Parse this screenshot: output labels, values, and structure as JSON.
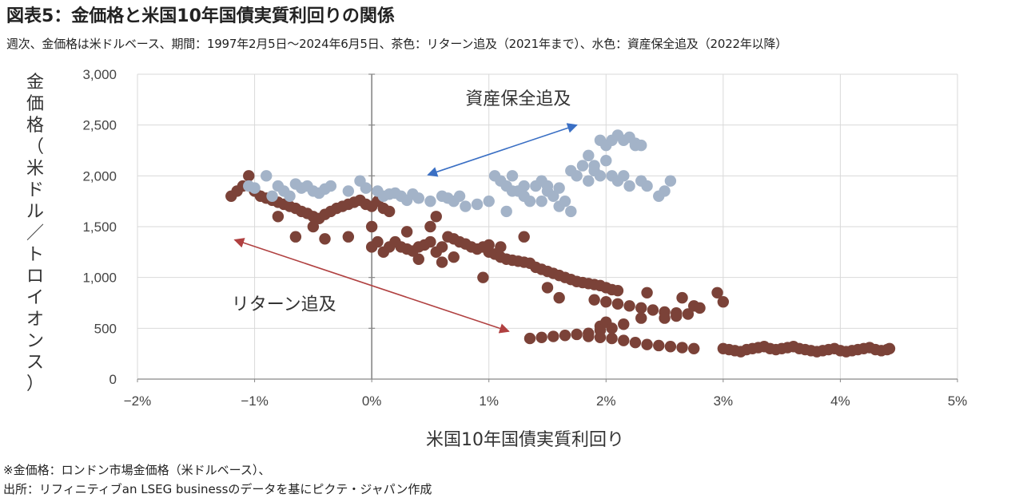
{
  "title": "図表5：金価格と米国10年国債実質利回りの関係",
  "subtitle": "週次、金価格は米ドルベース、期間：1997年2月5日～2024年6月5日、茶色：リターン追及（2021年まで）、水色：資産保全追及（2022年以降）",
  "notes": {
    "line1": "※金価格：ロンドン市場金価格（米ドルベース）、",
    "line2": "出所：リフィニティブan LSEG businessのデータを基にピクテ・ジャパン作成"
  },
  "chart_data": {
    "type": "scatter",
    "xlabel": "米国10年国債実質利回り",
    "ylabel": "金価格（米ドル／トロイオンス）",
    "xlim": [
      -2,
      5
    ],
    "ylim": [
      0,
      3000
    ],
    "x_ticks": [
      "−2%",
      "−1%",
      "0%",
      "1%",
      "2%",
      "3%",
      "4%",
      "5%"
    ],
    "y_ticks": [
      "0",
      "500",
      "1,000",
      "1,500",
      "2,000",
      "2,500",
      "3,000"
    ],
    "grid": true,
    "annotations": [
      {
        "text": "資産保全追及",
        "x": 1.25,
        "y": 2700
      },
      {
        "text": "リターン追及",
        "x": -0.75,
        "y": 680
      }
    ],
    "arrows": [
      {
        "from": [
          1.75,
          2500
        ],
        "to": [
          0.48,
          2010
        ],
        "color": "#3a6fc4"
      },
      {
        "from": [
          -1.17,
          1370
        ],
        "to": [
          1.17,
          470
        ],
        "color": "#b04040"
      }
    ],
    "series": [
      {
        "color": "#7b4238",
        "points": [
          [
            -1.2,
            1800
          ],
          [
            -1.15,
            1850
          ],
          [
            -1.1,
            1900
          ],
          [
            -1.05,
            2000
          ],
          [
            -1.0,
            1850
          ],
          [
            -0.95,
            1800
          ],
          [
            -0.9,
            1780
          ],
          [
            -0.85,
            1760
          ],
          [
            -0.8,
            1740
          ],
          [
            -0.75,
            1720
          ],
          [
            -0.7,
            1700
          ],
          [
            -0.65,
            1680
          ],
          [
            -0.6,
            1650
          ],
          [
            -0.55,
            1630
          ],
          [
            -0.5,
            1600
          ],
          [
            -0.45,
            1580
          ],
          [
            -0.4,
            1620
          ],
          [
            -0.35,
            1650
          ],
          [
            -0.3,
            1680
          ],
          [
            -0.25,
            1700
          ],
          [
            -0.2,
            1720
          ],
          [
            -0.15,
            1740
          ],
          [
            -0.1,
            1760
          ],
          [
            -0.05,
            1720
          ],
          [
            0.0,
            1700
          ],
          [
            0.05,
            1750
          ],
          [
            0.1,
            1680
          ],
          [
            0.15,
            1650
          ],
          [
            -0.65,
            1400
          ],
          [
            -0.4,
            1380
          ],
          [
            -0.2,
            1400
          ],
          [
            -0.8,
            1600
          ],
          [
            -0.5,
            1500
          ],
          [
            0.0,
            1500
          ],
          [
            0.0,
            1300
          ],
          [
            0.05,
            1350
          ],
          [
            0.1,
            1250
          ],
          [
            0.15,
            1300
          ],
          [
            0.2,
            1350
          ],
          [
            0.25,
            1300
          ],
          [
            0.3,
            1280
          ],
          [
            0.35,
            1260
          ],
          [
            0.4,
            1300
          ],
          [
            0.45,
            1320
          ],
          [
            0.5,
            1350
          ],
          [
            0.55,
            1250
          ],
          [
            0.6,
            1300
          ],
          [
            0.65,
            1400
          ],
          [
            0.7,
            1380
          ],
          [
            0.75,
            1350
          ],
          [
            0.8,
            1330
          ],
          [
            0.85,
            1300
          ],
          [
            0.9,
            1280
          ],
          [
            0.95,
            1300
          ],
          [
            1.0,
            1320
          ],
          [
            0.3,
            1450
          ],
          [
            0.5,
            1500
          ],
          [
            0.55,
            1600
          ],
          [
            0.7,
            1200
          ],
          [
            0.4,
            1180
          ],
          [
            0.6,
            1150
          ],
          [
            1.0,
            1250
          ],
          [
            1.05,
            1230
          ],
          [
            1.1,
            1200
          ],
          [
            1.15,
            1180
          ],
          [
            1.2,
            1170
          ],
          [
            1.25,
            1160
          ],
          [
            1.3,
            1150
          ],
          [
            1.35,
            1140
          ],
          [
            1.4,
            1100
          ],
          [
            1.45,
            1080
          ],
          [
            1.5,
            1060
          ],
          [
            1.55,
            1040
          ],
          [
            1.6,
            1020
          ],
          [
            1.65,
            1000
          ],
          [
            1.7,
            980
          ],
          [
            1.75,
            960
          ],
          [
            1.8,
            950
          ],
          [
            1.85,
            940
          ],
          [
            1.9,
            930
          ],
          [
            1.95,
            920
          ],
          [
            2.0,
            900
          ],
          [
            2.05,
            880
          ],
          [
            2.1,
            870
          ],
          [
            1.3,
            1400
          ],
          [
            1.1,
            1300
          ],
          [
            1.5,
            900
          ],
          [
            0.95,
            1000
          ],
          [
            1.6,
            800
          ],
          [
            1.9,
            780
          ],
          [
            2.0,
            760
          ],
          [
            2.1,
            740
          ],
          [
            2.2,
            720
          ],
          [
            2.3,
            700
          ],
          [
            2.35,
            850
          ],
          [
            2.4,
            680
          ],
          [
            2.5,
            660
          ],
          [
            2.6,
            650
          ],
          [
            2.7,
            640
          ],
          [
            2.75,
            720
          ],
          [
            2.8,
            700
          ],
          [
            2.3,
            600
          ],
          [
            2.5,
            600
          ],
          [
            2.6,
            620
          ],
          [
            2.65,
            800
          ],
          [
            2.95,
            850
          ],
          [
            3.0,
            760
          ],
          [
            1.95,
            520
          ],
          [
            2.0,
            560
          ],
          [
            2.05,
            500
          ],
          [
            2.15,
            540
          ],
          [
            1.85,
            450
          ],
          [
            1.95,
            480
          ],
          [
            1.35,
            400
          ],
          [
            1.45,
            410
          ],
          [
            1.55,
            420
          ],
          [
            1.65,
            430
          ],
          [
            1.75,
            440
          ],
          [
            1.85,
            420
          ],
          [
            1.95,
            410
          ],
          [
            2.05,
            400
          ],
          [
            2.15,
            380
          ],
          [
            2.25,
            360
          ],
          [
            2.35,
            340
          ],
          [
            2.45,
            330
          ],
          [
            2.55,
            320
          ],
          [
            2.65,
            310
          ],
          [
            2.75,
            300
          ],
          [
            3.0,
            300
          ],
          [
            3.05,
            290
          ],
          [
            3.1,
            280
          ],
          [
            3.15,
            270
          ],
          [
            3.2,
            290
          ],
          [
            3.25,
            300
          ],
          [
            3.3,
            310
          ],
          [
            3.35,
            320
          ],
          [
            3.4,
            300
          ],
          [
            3.45,
            290
          ],
          [
            3.5,
            300
          ],
          [
            3.55,
            310
          ],
          [
            3.6,
            320
          ],
          [
            3.65,
            300
          ],
          [
            3.7,
            290
          ],
          [
            3.75,
            280
          ],
          [
            3.8,
            270
          ],
          [
            3.85,
            280
          ],
          [
            3.9,
            290
          ],
          [
            3.95,
            300
          ],
          [
            4.0,
            280
          ],
          [
            4.05,
            270
          ],
          [
            4.1,
            280
          ],
          [
            4.15,
            290
          ],
          [
            4.2,
            300
          ],
          [
            4.25,
            310
          ],
          [
            4.3,
            290
          ],
          [
            4.35,
            280
          ],
          [
            4.4,
            290
          ],
          [
            4.42,
            300
          ]
        ]
      },
      {
        "color": "#a3b3c8",
        "points": [
          [
            -1.05,
            1900
          ],
          [
            -1.0,
            1880
          ],
          [
            -0.9,
            2000
          ],
          [
            -0.85,
            1800
          ],
          [
            -0.8,
            1900
          ],
          [
            -0.75,
            1850
          ],
          [
            -0.7,
            1800
          ],
          [
            -0.65,
            1920
          ],
          [
            -0.6,
            1880
          ],
          [
            -0.55,
            1900
          ],
          [
            -0.5,
            1850
          ],
          [
            -0.45,
            1830
          ],
          [
            -0.4,
            1870
          ],
          [
            -0.35,
            1900
          ],
          [
            -0.2,
            1850
          ],
          [
            -0.1,
            1950
          ],
          [
            -0.05,
            1880
          ],
          [
            0.05,
            1850
          ],
          [
            0.1,
            1800
          ],
          [
            0.15,
            1820
          ],
          [
            0.2,
            1830
          ],
          [
            0.25,
            1800
          ],
          [
            0.3,
            1760
          ],
          [
            0.35,
            1820
          ],
          [
            0.4,
            1780
          ],
          [
            0.5,
            1750
          ],
          [
            0.6,
            1800
          ],
          [
            0.65,
            1780
          ],
          [
            0.7,
            1750
          ],
          [
            0.8,
            1700
          ],
          [
            0.9,
            1720
          ],
          [
            1.0,
            1750
          ],
          [
            1.05,
            2000
          ],
          [
            1.1,
            1950
          ],
          [
            1.15,
            1900
          ],
          [
            1.2,
            2000
          ],
          [
            1.25,
            1850
          ],
          [
            1.3,
            1800
          ],
          [
            1.35,
            1750
          ],
          [
            1.4,
            1900
          ],
          [
            1.45,
            1950
          ],
          [
            1.5,
            1850
          ],
          [
            1.55,
            1800
          ],
          [
            1.6,
            1700
          ],
          [
            1.65,
            1750
          ],
          [
            1.7,
            1650
          ],
          [
            1.75,
            2000
          ],
          [
            1.8,
            2100
          ],
          [
            1.85,
            1950
          ],
          [
            1.9,
            2050
          ],
          [
            1.95,
            2000
          ],
          [
            2.0,
            2150
          ],
          [
            2.05,
            2000
          ],
          [
            2.1,
            1950
          ],
          [
            2.15,
            2000
          ],
          [
            2.2,
            1900
          ],
          [
            2.25,
            2300
          ],
          [
            2.3,
            1950
          ],
          [
            2.35,
            1900
          ],
          [
            2.5,
            1850
          ],
          [
            2.55,
            1950
          ],
          [
            1.95,
            2350
          ],
          [
            2.0,
            2300
          ],
          [
            2.05,
            2350
          ],
          [
            2.1,
            2400
          ],
          [
            2.15,
            2350
          ],
          [
            2.2,
            2380
          ],
          [
            2.25,
            2320
          ],
          [
            2.3,
            2300
          ],
          [
            1.85,
            2200
          ],
          [
            1.9,
            2100
          ],
          [
            1.3,
            1900
          ],
          [
            1.45,
            1750
          ],
          [
            1.15,
            1650
          ],
          [
            1.5,
            1900
          ],
          [
            1.7,
            2050
          ],
          [
            2.45,
            1800
          ],
          [
            1.2,
            1850
          ],
          [
            1.6,
            1880
          ],
          [
            0.75,
            1800
          ]
        ]
      }
    ]
  }
}
